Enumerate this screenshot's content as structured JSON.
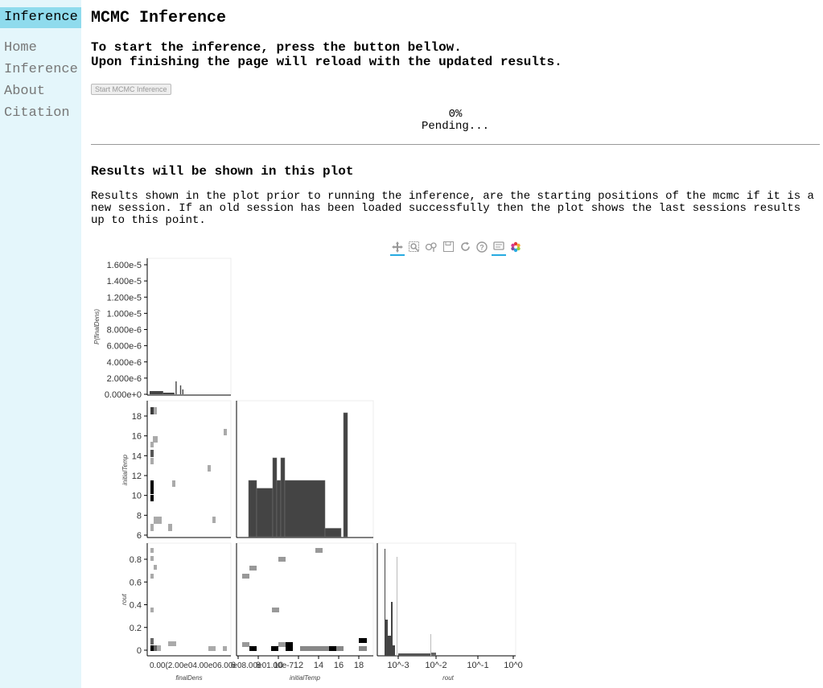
{
  "sidebar": {
    "active": "Inference",
    "items": [
      {
        "label": "Home"
      },
      {
        "label": "Inference"
      },
      {
        "label": "About"
      },
      {
        "label": "Citation"
      }
    ]
  },
  "main": {
    "title": "MCMC Inference",
    "intro_line1": "To start the inference, press the button bellow.",
    "intro_line2": "Upon finishing the page will reload with the updated results.",
    "start_button": "Start MCMC Inference",
    "progress_percent": "0%",
    "progress_status": "Pending...",
    "results_heading": "Results will be shown in this plot",
    "results_description": "Results shown in the plot prior to running the inference, are the starting positions of the mcmc if it is a new session. If an old session has been loaded successfully then the plot shows the last sessions results up to this point."
  },
  "toolbar": {
    "tools": [
      "pan-icon",
      "box-zoom-icon",
      "wheel-zoom-icon",
      "save-icon",
      "reset-icon",
      "help-icon",
      "hover-icon",
      "bokeh-logo-icon"
    ]
  },
  "chart_data": [
    {
      "type": "bar",
      "panel": "finalDens marginal",
      "ylabel": "P(finalDens)",
      "ylim": [
        0,
        1.7e-05
      ],
      "yticks": [
        "1.600e-5",
        "1.400e-5",
        "1.200e-5",
        "1.000e-5",
        "8.000e-6",
        "6.000e-6",
        "4.000e-6",
        "2.000e-6",
        "0.000e+0"
      ],
      "approx_bars": [
        {
          "x_start": 0.0,
          "x_end": 0.12,
          "height": 4e-07
        },
        {
          "x_start": 0.12,
          "x_end": 0.22,
          "height": 2e-07
        },
        {
          "x_start": 0.23,
          "x_end": 0.24,
          "height": 1.6e-06
        },
        {
          "x_start": 0.27,
          "x_end": 0.28,
          "height": 1.1e-06
        },
        {
          "x_start": 0.29,
          "x_end": 0.3,
          "height": 6e-07
        }
      ]
    },
    {
      "type": "heatmap",
      "panel": "finalDens vs initialTemp",
      "ylabel": "initialTemp",
      "yticks": [
        "6",
        "8",
        "10",
        "12",
        "14",
        "16",
        "18"
      ],
      "ylim": [
        5.8,
        19.7
      ]
    },
    {
      "type": "bar",
      "panel": "initialTemp marginal",
      "xlim": [
        6,
        19.5
      ],
      "approx_bars": [
        {
          "x_start": 6.6,
          "x_end": 7.6,
          "height": 1
        },
        {
          "x_start": 7.6,
          "x_end": 9.6,
          "height": 0.86
        },
        {
          "x_start": 9.6,
          "x_end": 10.1,
          "height": 1.4
        },
        {
          "x_start": 10.1,
          "x_end": 10.6,
          "height": 1
        },
        {
          "x_start": 10.6,
          "x_end": 11.1,
          "height": 1.4
        },
        {
          "x_start": 11.1,
          "x_end": 16.1,
          "height": 1
        },
        {
          "x_start": 16.1,
          "x_end": 18.1,
          "height": 0.15
        },
        {
          "x_start": 18.4,
          "x_end": 18.9,
          "height": 2.2
        }
      ]
    },
    {
      "type": "heatmap",
      "panel": "finalDens vs rout",
      "ylabel": "rout",
      "xlabel": "finalDens",
      "yticks": [
        "0",
        "0.2",
        "0.4",
        "0.6",
        "0.8"
      ],
      "ylim": [
        -0.04,
        0.95
      ]
    },
    {
      "type": "heatmap",
      "panel": "initialTemp vs rout",
      "xlabel": "initialTemp",
      "xticks": [
        "6",
        "8",
        "10",
        "12",
        "14",
        "16",
        "18"
      ],
      "xlim": [
        6,
        19.5
      ]
    },
    {
      "type": "bar",
      "panel": "rout marginal",
      "xlabel": "rout",
      "xscale": "log",
      "xticks": [
        "10^-3",
        "10^-2",
        "10^-1",
        "10^0"
      ]
    }
  ],
  "axis_tick_labels": {
    "finalDens_x": "0.00(2.00e04.00e06.00e08.00e01.00e-7",
    "initialTemp_x_first": "6"
  }
}
